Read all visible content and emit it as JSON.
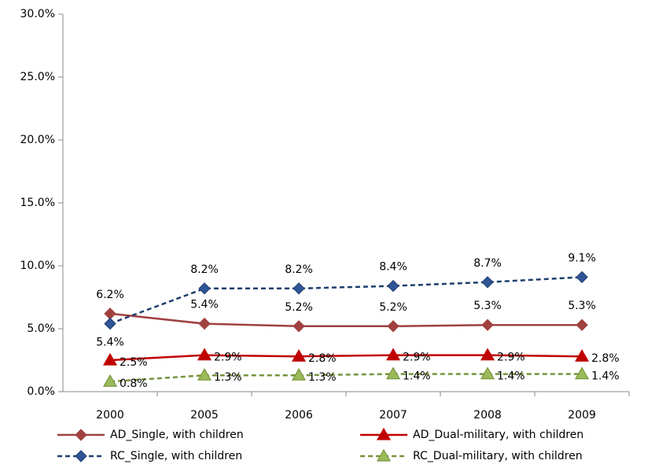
{
  "chart_data": {
    "type": "line",
    "categories": [
      "2000",
      "2005",
      "2006",
      "2007",
      "2008",
      "2009"
    ],
    "ylim": [
      0,
      30
    ],
    "yticks": [
      {
        "value": 0,
        "label": "0.0%"
      },
      {
        "value": 5,
        "label": "5.0%"
      },
      {
        "value": 10,
        "label": "10.0%"
      },
      {
        "value": 15,
        "label": "15.0%"
      },
      {
        "value": 20,
        "label": "20.0%"
      },
      {
        "value": 25,
        "label": "25.0%"
      },
      {
        "value": 30,
        "label": "30.0%"
      }
    ],
    "grid": false,
    "legend": "bottom",
    "series": [
      {
        "name": "AD_Single, with children",
        "color": "#a0413f",
        "marker_color": "#a0413f",
        "line_style": "solid",
        "marker": "diamond",
        "values": [
          6.2,
          5.4,
          5.2,
          5.2,
          5.3,
          5.3
        ],
        "value_labels": [
          "6.2%",
          "5.4%",
          "5.2%",
          "5.2%",
          "5.3%",
          "5.3%"
        ]
      },
      {
        "name": "RC_Single, with children",
        "color": "#1f3d6e",
        "marker_color": "#2f5597",
        "line_style": "dashed",
        "marker": "diamond",
        "values": [
          5.4,
          8.2,
          8.2,
          8.4,
          8.7,
          9.1
        ],
        "value_labels": [
          "5.4%",
          "8.2%",
          "8.2%",
          "8.4%",
          "8.7%",
          "9.1%"
        ]
      },
      {
        "name": "AD_Dual-military, with children",
        "color": "#c00000",
        "marker_color": "#c00000",
        "line_style": "solid",
        "marker": "triangle",
        "values": [
          2.5,
          2.9,
          2.8,
          2.9,
          2.9,
          2.8
        ],
        "value_labels": [
          "2.5%",
          "2.9%",
          "2.8%",
          "2.9%",
          "2.9%",
          "2.8%"
        ]
      },
      {
        "name": "RC_Dual-military, with children",
        "color": "#77933c",
        "marker_color": "#9bbb59",
        "line_style": "dashed",
        "marker": "triangle",
        "values": [
          0.8,
          1.3,
          1.3,
          1.4,
          1.4,
          1.4
        ],
        "value_labels": [
          "0.8%",
          "1.3%",
          "1.3%",
          "1.4%",
          "1.4%",
          "1.4%"
        ]
      }
    ]
  }
}
